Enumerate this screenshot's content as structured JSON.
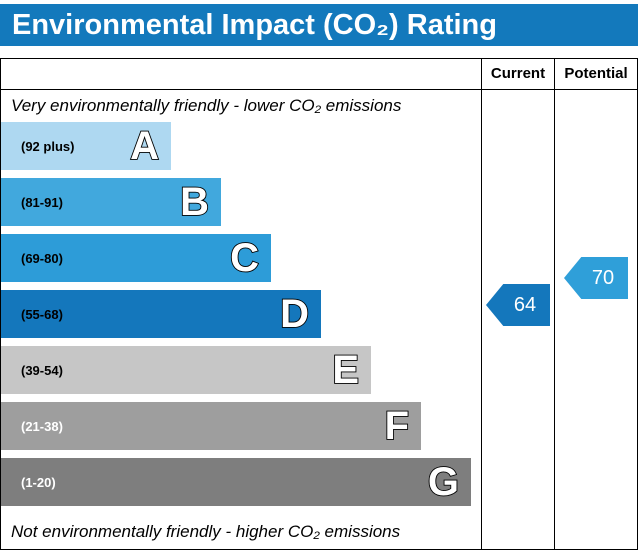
{
  "title": "Environmental Impact (CO₂) Rating",
  "columns": {
    "current": "Current",
    "potential": "Potential"
  },
  "notes": {
    "top": "Very environmentally friendly - lower CO₂ emissions",
    "bottom": "Not environmentally friendly - higher CO₂ emissions"
  },
  "bands": [
    {
      "letter": "A",
      "label": "(92 plus)",
      "min": 92,
      "max": 100,
      "color": "#aed8f1",
      "text_color": "#000000"
    },
    {
      "letter": "B",
      "label": "(81-91)",
      "min": 81,
      "max": 91,
      "color": "#41a8dd",
      "text_color": "#000000"
    },
    {
      "letter": "C",
      "label": "(69-80)",
      "min": 69,
      "max": 80,
      "color": "#2d9cd8",
      "text_color": "#000000"
    },
    {
      "letter": "D",
      "label": "(55-68)",
      "min": 55,
      "max": 68,
      "color": "#1477bc",
      "text_color": "#000000"
    },
    {
      "letter": "E",
      "label": "(39-54)",
      "min": 39,
      "max": 54,
      "color": "#c6c6c6",
      "text_color": "#000000"
    },
    {
      "letter": "F",
      "label": "(21-38)",
      "min": 21,
      "max": 38,
      "color": "#9e9e9e",
      "text_color": "#ffffff"
    },
    {
      "letter": "G",
      "label": "(1-20)",
      "min": 1,
      "max": 20,
      "color": "#7e7e7e",
      "text_color": "#ffffff"
    }
  ],
  "current": {
    "value": 64,
    "color": "#1477bc"
  },
  "potential": {
    "value": 70,
    "color": "#2f9fd9"
  },
  "colors": {
    "header_bg": "#1379bc",
    "border": "#000000"
  },
  "chart_data": {
    "type": "bar",
    "title": "Environmental Impact (CO₂) Rating",
    "categories": [
      "A",
      "B",
      "C",
      "D",
      "E",
      "F",
      "G"
    ],
    "band_ranges": [
      "92 plus",
      "81-91",
      "69-80",
      "55-68",
      "39-54",
      "21-38",
      "1-20"
    ],
    "series": [
      {
        "name": "Current",
        "values": [
          64
        ],
        "band": "D"
      },
      {
        "name": "Potential",
        "values": [
          70
        ],
        "band": "C"
      }
    ],
    "top_label": "Very environmentally friendly - lower CO₂ emissions",
    "bottom_label": "Not environmentally friendly - higher CO₂ emissions",
    "legend_position": "none",
    "grid": false
  }
}
